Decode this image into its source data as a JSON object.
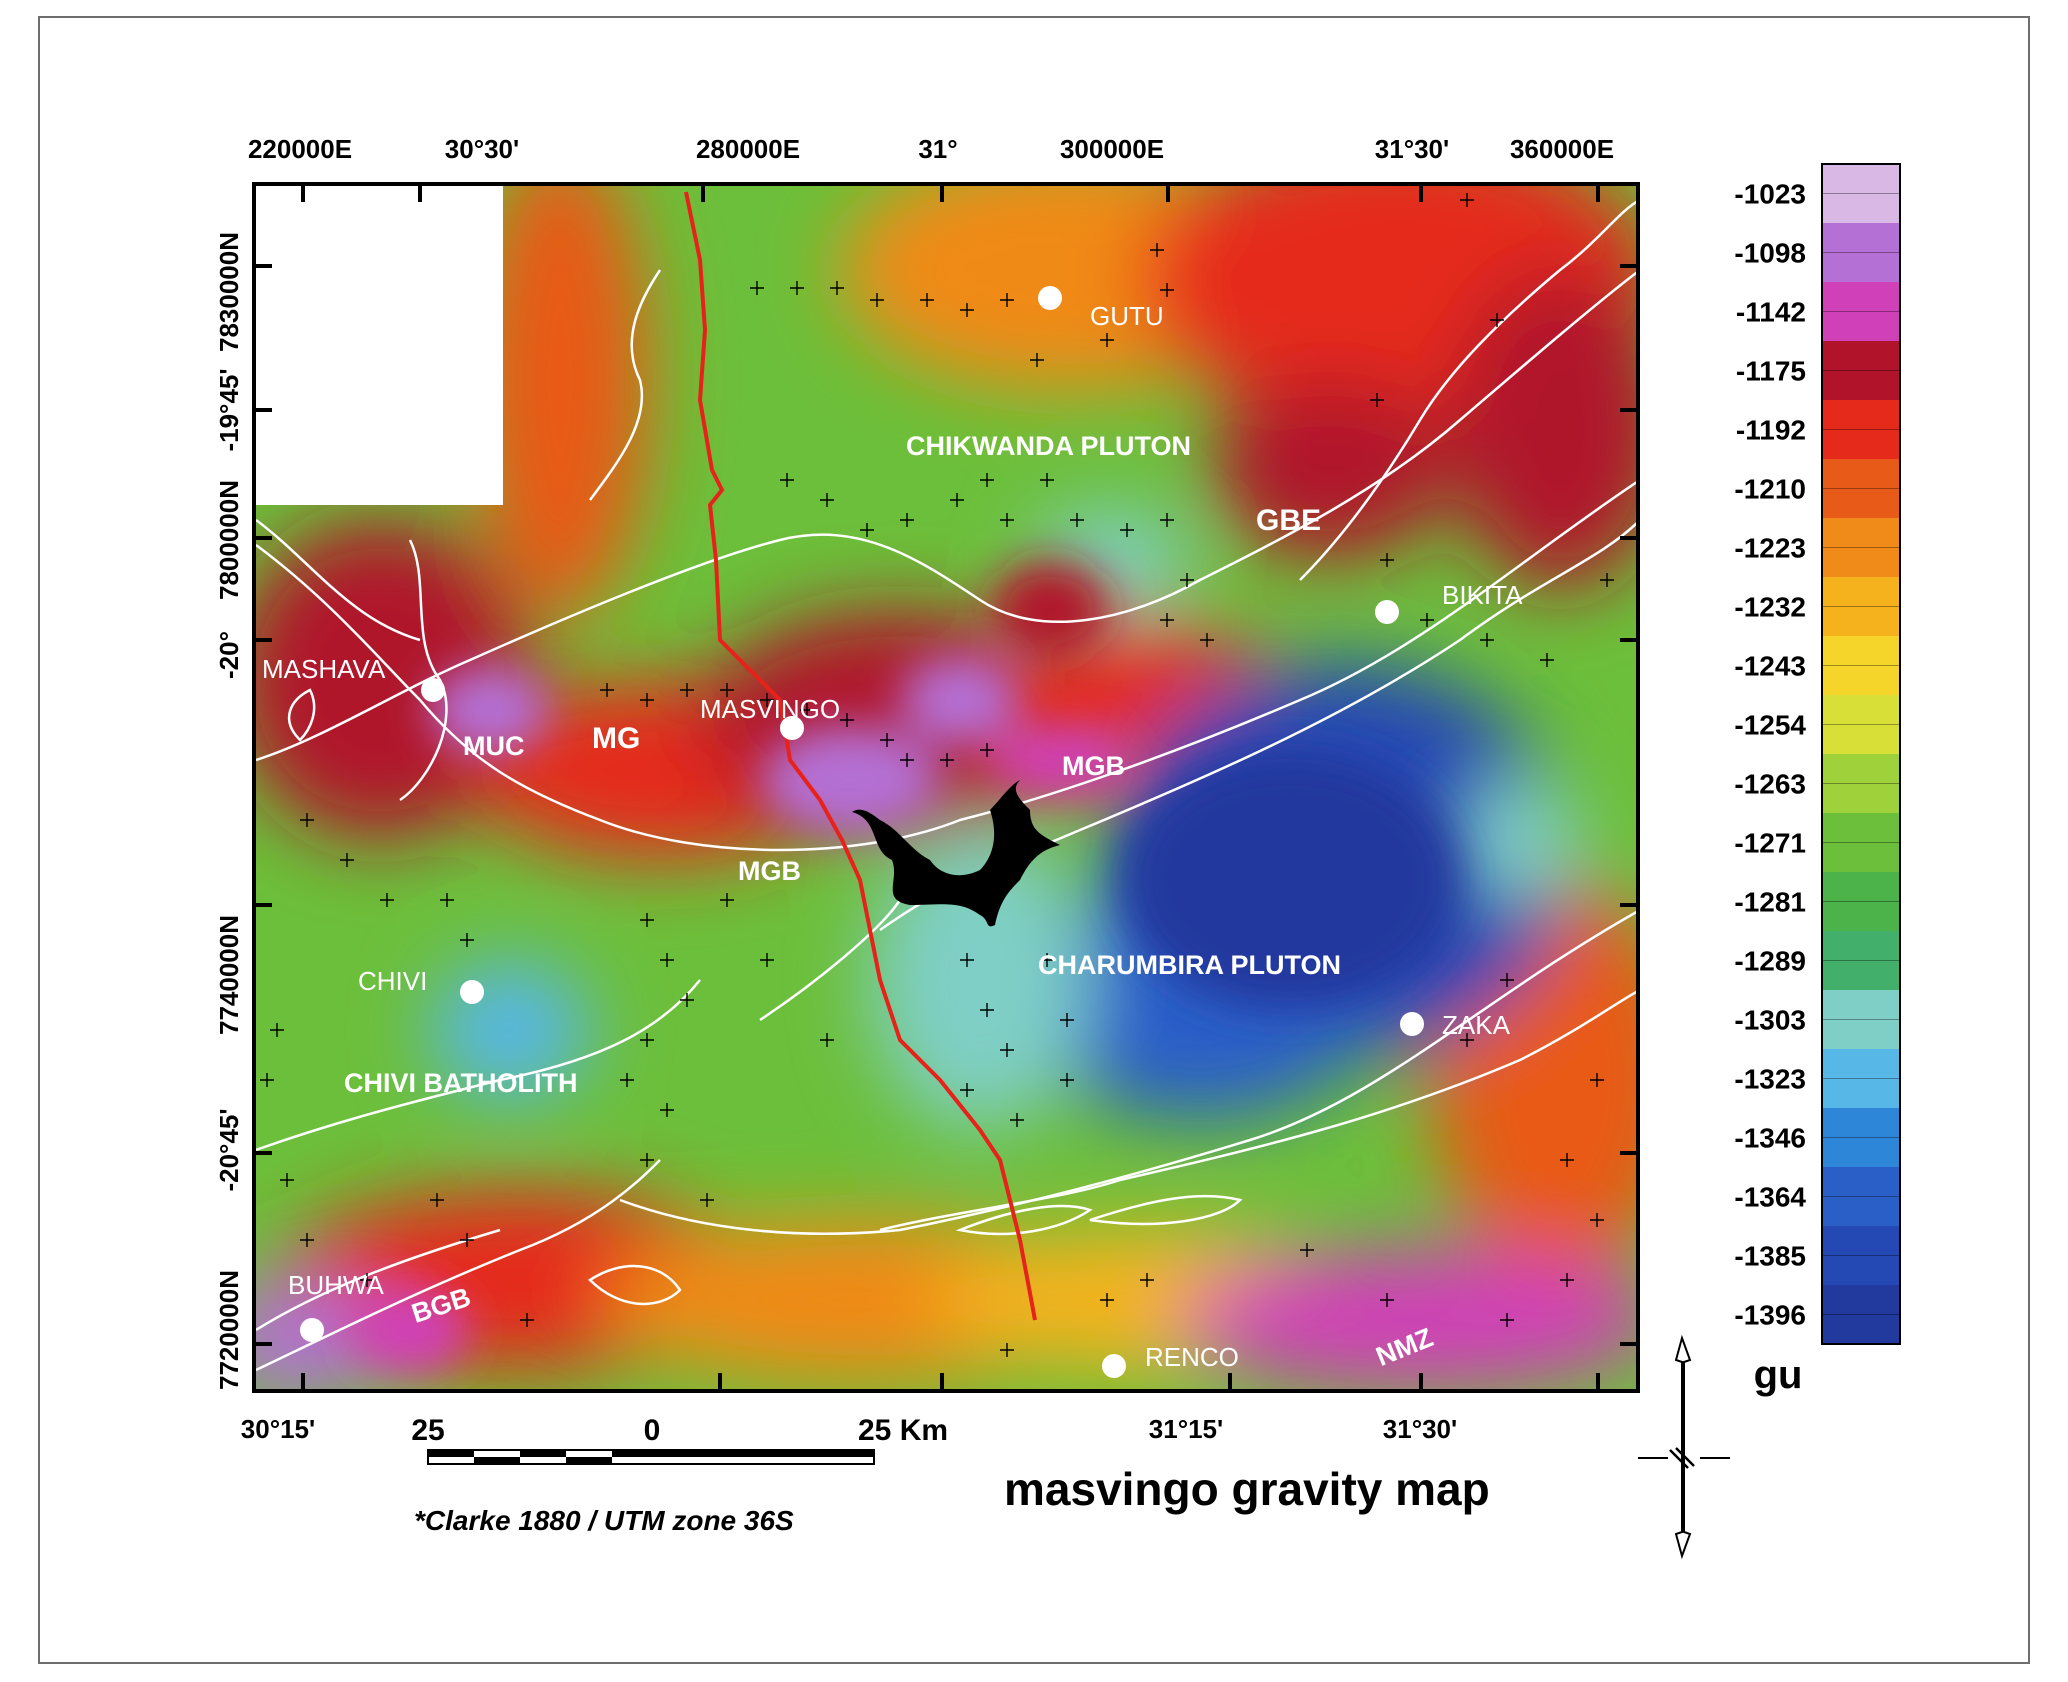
{
  "map": {
    "title": "masvingo gravity map",
    "projection": "*Clarke 1880 / UTM zone 36S",
    "top_labels": [
      "220000E",
      "30°30'",
      "280000E",
      "31°",
      "300000E",
      "31°30'",
      "360000E"
    ],
    "left_labels": [
      "7830000N",
      "-19°45'",
      "7800000N",
      "-20°",
      "7740000N",
      "-20°45'",
      "7720000N"
    ],
    "bottom_labels": [
      "30°15'",
      "31°15'",
      "31°30'"
    ],
    "scale_labels": [
      "25",
      "0",
      "25 Km"
    ],
    "places": [
      "GUTU",
      "BIKITA",
      "MASHAVA",
      "MASVINGO",
      "CHIVI",
      "ZAKA",
      "BUHWA",
      "RENCO"
    ],
    "units": [
      "CHIKWANDA PLUTON",
      "GBE",
      "MUC",
      "MG",
      "MGB",
      "MGB",
      "CHARUMBIRA PLUTON",
      "CHIVI BATHOLITH",
      "BGB",
      "NMZ"
    ]
  },
  "legend": {
    "unit": "gu",
    "values": [
      "-1023",
      "-1098",
      "-1142",
      "-1175",
      "-1192",
      "-1210",
      "-1223",
      "-1232",
      "-1243",
      "-1254",
      "-1263",
      "-1271",
      "-1281",
      "-1289",
      "-1303",
      "-1323",
      "-1346",
      "-1364",
      "-1385",
      "-1396"
    ],
    "colors": [
      "#d9b8e6",
      "#b470d4",
      "#d040b8",
      "#b0132a",
      "#e52a1c",
      "#e85a18",
      "#f08a18",
      "#f5b21c",
      "#f5d52a",
      "#d8e038",
      "#9ed13a",
      "#6cbf3a",
      "#4cb24a",
      "#42b06a",
      "#7fcfc6",
      "#57b7e6",
      "#2e86d8",
      "#2a5fc8",
      "#2549b4",
      "#22399e"
    ]
  }
}
